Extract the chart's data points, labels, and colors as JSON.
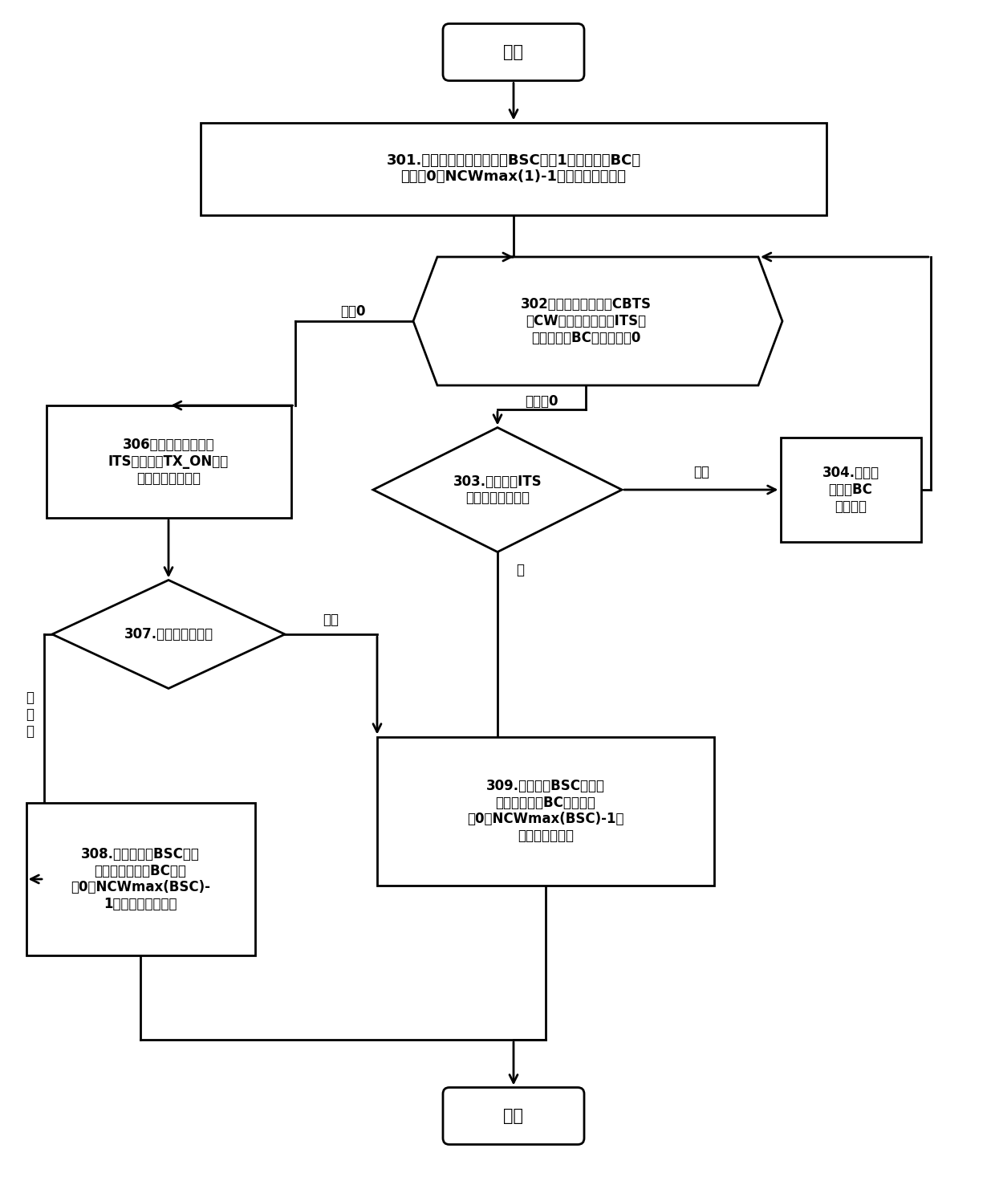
{
  "bg_color": "#ffffff",
  "line_color": "#000000",
  "text_color": "#000000",
  "start_text": "开始",
  "end_text": "结束",
  "b301": "301.竞争节点初始化自己的BSC值为1，将自己的BC值\n置为（0，NCWmax(1)-1）区间内的随机值",
  "b302": "302、竞争节点在当前CBTS\n的CW的每个空闲时隙ITS开\n始时，判断BC值是否等于0",
  "b303": "303.检测当前ITS\n内是否有数据传输",
  "b304": "304.竞争节\n点执行BC\n递减操作",
  "b306": "306、竞争节点在当前\nITS开始后的TX_ON微秒\n窗口内开始发送帧",
  "b307": "307.是否有传输冲突",
  "b308": "308.竞争节点的BSC执行\n递减操作，并将BC置为\n（0，NCWmax(BSC)-\n1）区间内的随机值",
  "b309": "309.竞争节点BSC执行递\n增操作，并将BC值设置为\n（0，NCWmax(BSC)-1）\n区间内的随机值",
  "label_eq0": "等于0",
  "label_neq0": "不等于0",
  "label_no": "没有",
  "label_yes": "有",
  "label_conflict": "冲突",
  "label_noconflict": "不\n冲\n突"
}
